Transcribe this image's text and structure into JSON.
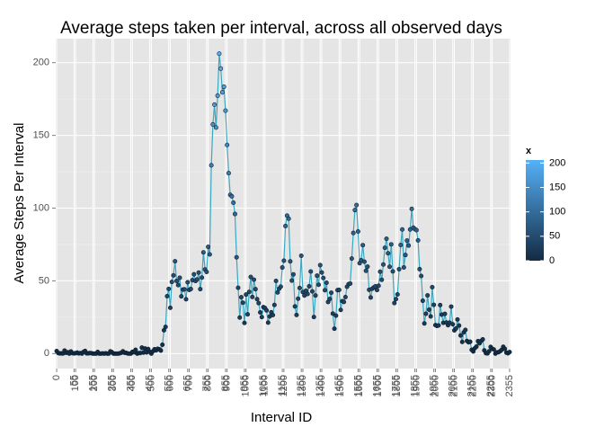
{
  "chart_data": {
    "type": "line",
    "title": "Average steps taken per interval, across all observed days",
    "x_label": "Interval ID",
    "y_label": "Average Steps Per Interval",
    "categories": [
      "0",
      null,
      null,
      null,
      null,
      null,
      null,
      null,
      null,
      null,
      null,
      "55",
      "100",
      null,
      null,
      null,
      null,
      null,
      null,
      null,
      null,
      null,
      null,
      "155",
      "200",
      null,
      null,
      null,
      null,
      null,
      null,
      null,
      null,
      null,
      null,
      "255",
      "300",
      null,
      null,
      null,
      null,
      null,
      null,
      null,
      null,
      null,
      null,
      "355",
      "400",
      null,
      null,
      null,
      null,
      null,
      null,
      null,
      null,
      null,
      null,
      "455",
      "500",
      null,
      null,
      null,
      null,
      null,
      null,
      null,
      null,
      null,
      null,
      "555",
      "600",
      null,
      null,
      null,
      null,
      null,
      null,
      null,
      null,
      null,
      null,
      "655",
      "700",
      null,
      null,
      null,
      null,
      null,
      null,
      null,
      null,
      null,
      null,
      "755",
      "800",
      null,
      null,
      null,
      null,
      null,
      null,
      null,
      null,
      null,
      null,
      "855",
      "900",
      null,
      null,
      null,
      null,
      null,
      null,
      null,
      null,
      null,
      null,
      "955",
      "1000",
      null,
      null,
      null,
      null,
      null,
      null,
      null,
      null,
      null,
      null,
      "1055",
      "1100",
      null,
      null,
      null,
      null,
      null,
      null,
      null,
      null,
      null,
      null,
      "1155",
      "1200",
      null,
      null,
      null,
      null,
      null,
      null,
      null,
      null,
      null,
      null,
      "1255",
      "1300",
      null,
      null,
      null,
      null,
      null,
      null,
      null,
      null,
      null,
      null,
      "1355",
      "1400",
      null,
      null,
      null,
      null,
      null,
      null,
      null,
      null,
      null,
      null,
      "1455",
      "1500",
      null,
      null,
      null,
      null,
      null,
      null,
      null,
      null,
      null,
      null,
      "1555",
      "1600",
      null,
      null,
      null,
      null,
      null,
      null,
      null,
      null,
      null,
      null,
      "1655",
      "1700",
      null,
      null,
      null,
      null,
      null,
      null,
      null,
      null,
      null,
      null,
      "1755",
      "1800",
      null,
      null,
      null,
      null,
      null,
      null,
      null,
      null,
      null,
      null,
      "1855",
      "1900",
      null,
      null,
      null,
      null,
      null,
      null,
      null,
      null,
      null,
      null,
      "1955",
      "2000",
      null,
      null,
      null,
      null,
      null,
      null,
      null,
      null,
      null,
      null,
      "2055",
      "2100",
      null,
      null,
      null,
      null,
      null,
      null,
      null,
      null,
      null,
      null,
      "2155",
      "2200",
      null,
      null,
      null,
      null,
      null,
      null,
      null,
      null,
      null,
      null,
      "2255",
      "2300",
      null,
      null,
      null,
      null,
      null,
      null,
      null,
      null,
      null,
      null,
      "2355"
    ],
    "values": [
      1.72,
      0.34,
      0.13,
      0.15,
      0.08,
      2.09,
      0.53,
      0.87,
      0,
      1.47,
      0.3,
      0.13,
      0.32,
      0.68,
      0.15,
      0.34,
      0,
      1.11,
      1.83,
      0.17,
      0.17,
      0.38,
      0.26,
      0,
      0,
      0,
      1.13,
      0,
      0,
      0.13,
      0,
      0.23,
      0,
      0,
      1.55,
      0.94,
      0,
      0,
      0,
      0,
      0.21,
      0.62,
      1.62,
      0.58,
      0.49,
      0.08,
      0,
      0,
      1.19,
      0.94,
      2.57,
      0,
      0.34,
      0.36,
      4.11,
      0.66,
      3.49,
      0.83,
      3.11,
      1.11,
      0,
      1.57,
      3,
      2.25,
      3.32,
      2.96,
      2.09,
      6.06,
      16.02,
      18.34,
      39.45,
      44.49,
      31.49,
      49.26,
      53.77,
      63.45,
      49.96,
      47.08,
      52.15,
      39.34,
      44.02,
      44.17,
      37.36,
      49.04,
      43.81,
      44.38,
      50.51,
      54.51,
      49.92,
      50.98,
      55.68,
      44.32,
      52.26,
      69.55,
      57.85,
      56.15,
      73.38,
      68.21,
      129.43,
      157.53,
      171.15,
      155.4,
      177.3,
      206.17,
      195.92,
      179.57,
      183.4,
      167.02,
      143.45,
      124.04,
      109.11,
      108.11,
      103.72,
      95.96,
      66.21,
      45.23,
      24.79,
      38.75,
      34.98,
      21.06,
      40.57,
      26.98,
      42.42,
      52.66,
      38.92,
      50.79,
      44.28,
      37.42,
      34.7,
      28.34,
      25.09,
      31.94,
      31.36,
      29.68,
      21.32,
      25.55,
      28.38,
      26.47,
      33.43,
      49.98,
      42.04,
      44.6,
      46.04,
      59.19,
      63.87,
      87.7,
      94.85,
      92.77,
      63.4,
      50.17,
      54.47,
      32.42,
      26.53,
      37.74,
      45.06,
      67.28,
      42.34,
      39.89,
      43.26,
      40.98,
      46.25,
      56.43,
      42.75,
      25.13,
      39.96,
      53.55,
      47.32,
      60.81,
      55.75,
      51.96,
      43.58,
      48.7,
      35.47,
      37.55,
      41.85,
      27.51,
      17.11,
      26.08,
      43.62,
      43.77,
      30.02,
      36.08,
      35.49,
      38.85,
      45.96,
      47.75,
      48.13,
      65.32,
      82.91,
      98.66,
      102.11,
      83.96,
      62.13,
      64.13,
      74.55,
      63.17,
      56.91,
      59.77,
      43.87,
      38.57,
      44.66,
      45.45,
      46.21,
      43.68,
      46.62,
      56.3,
      50.72,
      61.23,
      72.72,
      78.94,
      68.94,
      59.66,
      75.09,
      56.51,
      34.77,
      37.45,
      40.68,
      58.02,
      74.7,
      85.32,
      59.26,
      67.77,
      77.7,
      74.25,
      85.34,
      99.45,
      86.58,
      85.6,
      84.87,
      77.83,
      58.04,
      53.36,
      36.32,
      20.72,
      27.4,
      40.02,
      30.21,
      25.55,
      45.66,
      33.53,
      19.62,
      19.02,
      19.34,
      33.34,
      26.81,
      21.17,
      27.3,
      21.34,
      19.55,
      21.32,
      32.3,
      20.15,
      15.94,
      17.23,
      23.45,
      19.25,
      12.45,
      8.02,
      14.66,
      16.3,
      8.68,
      7.79,
      8.13,
      2.62,
      1.45,
      3.68,
      4.81,
      8.51,
      7.08,
      8.7,
      9.75,
      2.21,
      0.32,
      0.11,
      1.6,
      4.6,
      3.3,
      2.85,
      0,
      0.83,
      0.96,
      1.58,
      2.6,
      4.7,
      3.3,
      0.64,
      0.23,
      1.08
    ],
    "line_color": "#3aa8c1",
    "ylim": [
      -10.3,
      216.5
    ],
    "yticks": [
      0,
      50,
      100,
      150,
      200
    ],
    "grid": true,
    "color_scale": {
      "title": "x",
      "low": "#132b43",
      "high": "#56b1f7",
      "limits": [
        0,
        206.17
      ],
      "ticks": [
        0,
        50,
        100,
        150,
        200
      ]
    }
  }
}
